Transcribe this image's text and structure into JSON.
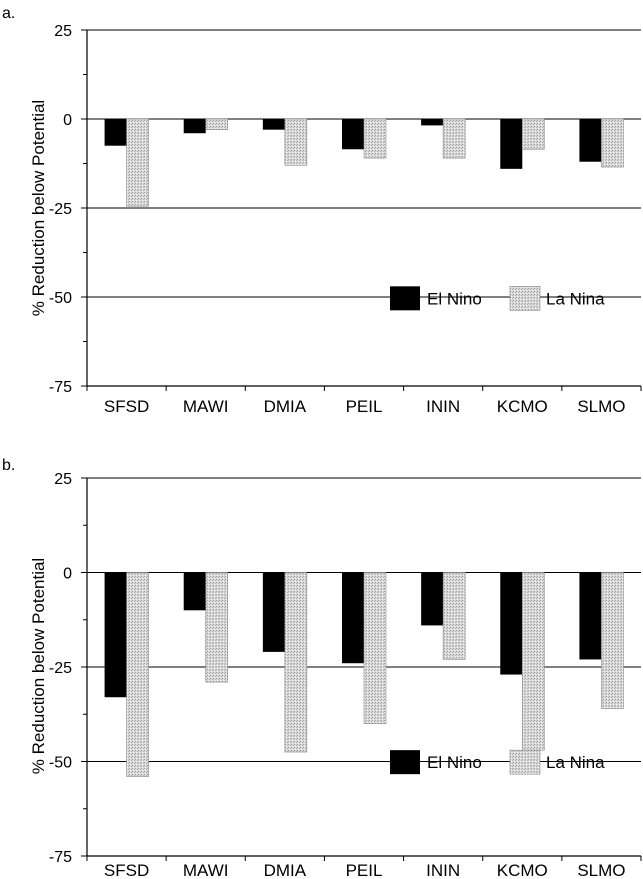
{
  "colors": {
    "el_nino": "#000000",
    "la_nina": "#d4d4d4",
    "grid": "#000000"
  },
  "chart_data": [
    {
      "type": "bar",
      "panel_label": "a.",
      "title": "",
      "xlabel": "",
      "ylabel": "% Reduction below Potential",
      "ylim": [
        -75,
        25
      ],
      "yticks": [
        "25",
        "0",
        "-25",
        "-50",
        "-75"
      ],
      "grid": "horizontal at 25, 0, -25, -50",
      "legend_position": "lower-right",
      "categories": [
        "SFSD",
        "MAWI",
        "DMIA",
        "PEIL",
        "ININ",
        "KCMO",
        "SLMO"
      ],
      "series": [
        {
          "name": "El Nino",
          "values": [
            -7.5,
            -4,
            -3,
            -8.5,
            -1.8,
            -14,
            -12
          ]
        },
        {
          "name": "La Nina",
          "values": [
            -24.5,
            -3,
            -13,
            -11,
            -11,
            -8.5,
            -13.5
          ]
        }
      ]
    },
    {
      "type": "bar",
      "panel_label": "b.",
      "title": "",
      "xlabel": "",
      "ylabel": "% Reduction below Potential",
      "ylim": [
        -75,
        25
      ],
      "yticks": [
        "25",
        "0",
        "-25",
        "-50",
        "-75"
      ],
      "grid": "horizontal at 25, 0, -25, -50",
      "legend_position": "lower-right",
      "categories": [
        "SFSD",
        "MAWI",
        "DMIA",
        "PEIL",
        "ININ",
        "KCMO",
        "SLMO"
      ],
      "series": [
        {
          "name": "El Nino",
          "values": [
            -33,
            -10,
            -21,
            -24,
            -14,
            -27,
            -23
          ]
        },
        {
          "name": "La Nina",
          "values": [
            -54,
            -29,
            -47.5,
            -40,
            -23,
            -47,
            -36
          ]
        }
      ]
    }
  ]
}
